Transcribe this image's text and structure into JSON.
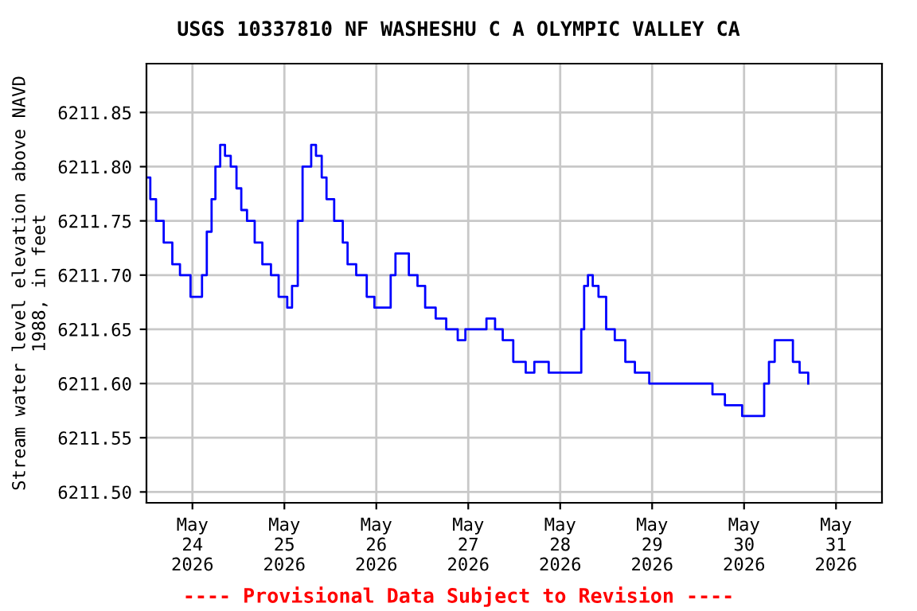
{
  "chart_data": {
    "type": "step",
    "title": "USGS 10337810 NF WASHESHU C A OLYMPIC VALLEY CA",
    "ylabel": "Stream water level elevation above NAVD\n1988, in feet",
    "annotations": [
      "---- Provisional Data Subject to Revision ----"
    ],
    "x": [
      "2026-05-23T12:15",
      "2026-05-23T13:00",
      "2026-05-23T14:30",
      "2026-05-23T16:30",
      "2026-05-23T18:45",
      "2026-05-23T20:45",
      "2026-05-23T23:30",
      "2026-05-24T01:30",
      "2026-05-24T02:30",
      "2026-05-24T03:45",
      "2026-05-24T05:00",
      "2026-05-24T06:00",
      "2026-05-24T07:15",
      "2026-05-24T08:30",
      "2026-05-24T10:00",
      "2026-05-24T11:30",
      "2026-05-24T12:45",
      "2026-05-24T14:15",
      "2026-05-24T16:15",
      "2026-05-24T18:15",
      "2026-05-24T20:30",
      "2026-05-24T22:30",
      "2026-05-25T00:45",
      "2026-05-25T02:00",
      "2026-05-25T03:30",
      "2026-05-25T04:45",
      "2026-05-25T07:00",
      "2026-05-25T08:15",
      "2026-05-25T09:45",
      "2026-05-25T11:00",
      "2026-05-25T13:00",
      "2026-05-25T15:15",
      "2026-05-25T16:30",
      "2026-05-25T18:45",
      "2026-05-25T21:30",
      "2026-05-25T23:30",
      "2026-05-26T02:00",
      "2026-05-26T03:45",
      "2026-05-26T05:00",
      "2026-05-26T06:30",
      "2026-05-26T08:30",
      "2026-05-26T10:45",
      "2026-05-26T12:45",
      "2026-05-26T15:30",
      "2026-05-26T18:15",
      "2026-05-26T21:15",
      "2026-05-26T23:15",
      "2026-05-27T04:00",
      "2026-05-27T04:45",
      "2026-05-27T07:00",
      "2026-05-27T09:00",
      "2026-05-27T11:45",
      "2026-05-27T15:00",
      "2026-05-27T17:15",
      "2026-05-27T20:00",
      "2026-05-27T21:00",
      "2026-05-28T04:45",
      "2026-05-28T05:30",
      "2026-05-28T06:15",
      "2026-05-28T07:15",
      "2026-05-28T08:30",
      "2026-05-28T10:00",
      "2026-05-28T12:00",
      "2026-05-28T14:15",
      "2026-05-28T17:00",
      "2026-05-28T19:30",
      "2026-05-28T23:15",
      "2026-05-29T15:15",
      "2026-05-29T15:45",
      "2026-05-29T19:00",
      "2026-05-29T23:30",
      "2026-05-30T04:00",
      "2026-05-30T05:15",
      "2026-05-30T06:30",
      "2026-05-30T08:00",
      "2026-05-30T10:45",
      "2026-05-30T12:45",
      "2026-05-30T14:30",
      "2026-05-30T16:45"
    ],
    "series": [
      {
        "color": "#0000ff",
        "values": [
          6211.79,
          6211.77,
          6211.75,
          6211.73,
          6211.71,
          6211.7,
          6211.68,
          6211.68,
          6211.7,
          6211.74,
          6211.77,
          6211.8,
          6211.82,
          6211.81,
          6211.8,
          6211.78,
          6211.76,
          6211.75,
          6211.73,
          6211.71,
          6211.7,
          6211.68,
          6211.67,
          6211.69,
          6211.75,
          6211.8,
          6211.82,
          6211.81,
          6211.79,
          6211.77,
          6211.75,
          6211.73,
          6211.71,
          6211.7,
          6211.68,
          6211.67,
          6211.67,
          6211.7,
          6211.72,
          6211.72,
          6211.7,
          6211.69,
          6211.67,
          6211.66,
          6211.65,
          6211.64,
          6211.65,
          6211.65,
          6211.66,
          6211.65,
          6211.64,
          6211.62,
          6211.61,
          6211.62,
          6211.62,
          6211.61,
          6211.61,
          6211.65,
          6211.69,
          6211.7,
          6211.69,
          6211.68,
          6211.65,
          6211.64,
          6211.62,
          6211.61,
          6211.6,
          6211.6,
          6211.59,
          6211.58,
          6211.57,
          6211.57,
          6211.6,
          6211.62,
          6211.64,
          6211.64,
          6211.62,
          6211.61,
          6211.6
        ]
      }
    ],
    "xlim": [
      "2026-05-23T12:00",
      "2026-05-31T12:00"
    ],
    "xticks": [
      {
        "value": "2026-05-24",
        "label": "May\n24\n2026"
      },
      {
        "value": "2026-05-25",
        "label": "May\n25\n2026"
      },
      {
        "value": "2026-05-26",
        "label": "May\n26\n2026"
      },
      {
        "value": "2026-05-27",
        "label": "May\n27\n2026"
      },
      {
        "value": "2026-05-28",
        "label": "May\n28\n2026"
      },
      {
        "value": "2026-05-29",
        "label": "May\n29\n2026"
      },
      {
        "value": "2026-05-30",
        "label": "May\n30\n2026"
      },
      {
        "value": "2026-05-31",
        "label": "May\n31\n2026"
      }
    ],
    "ylim": [
      6211.49,
      6211.895
    ],
    "yticks": [
      {
        "value": 6211.5,
        "label": "6211.50"
      },
      {
        "value": 6211.55,
        "label": "6211.55"
      },
      {
        "value": 6211.6,
        "label": "6211.60"
      },
      {
        "value": 6211.65,
        "label": "6211.65"
      },
      {
        "value": 6211.7,
        "label": "6211.70"
      },
      {
        "value": 6211.75,
        "label": "6211.75"
      },
      {
        "value": 6211.8,
        "label": "6211.80"
      },
      {
        "value": 6211.85,
        "label": "6211.85"
      }
    ],
    "grid": true,
    "legend": false
  }
}
